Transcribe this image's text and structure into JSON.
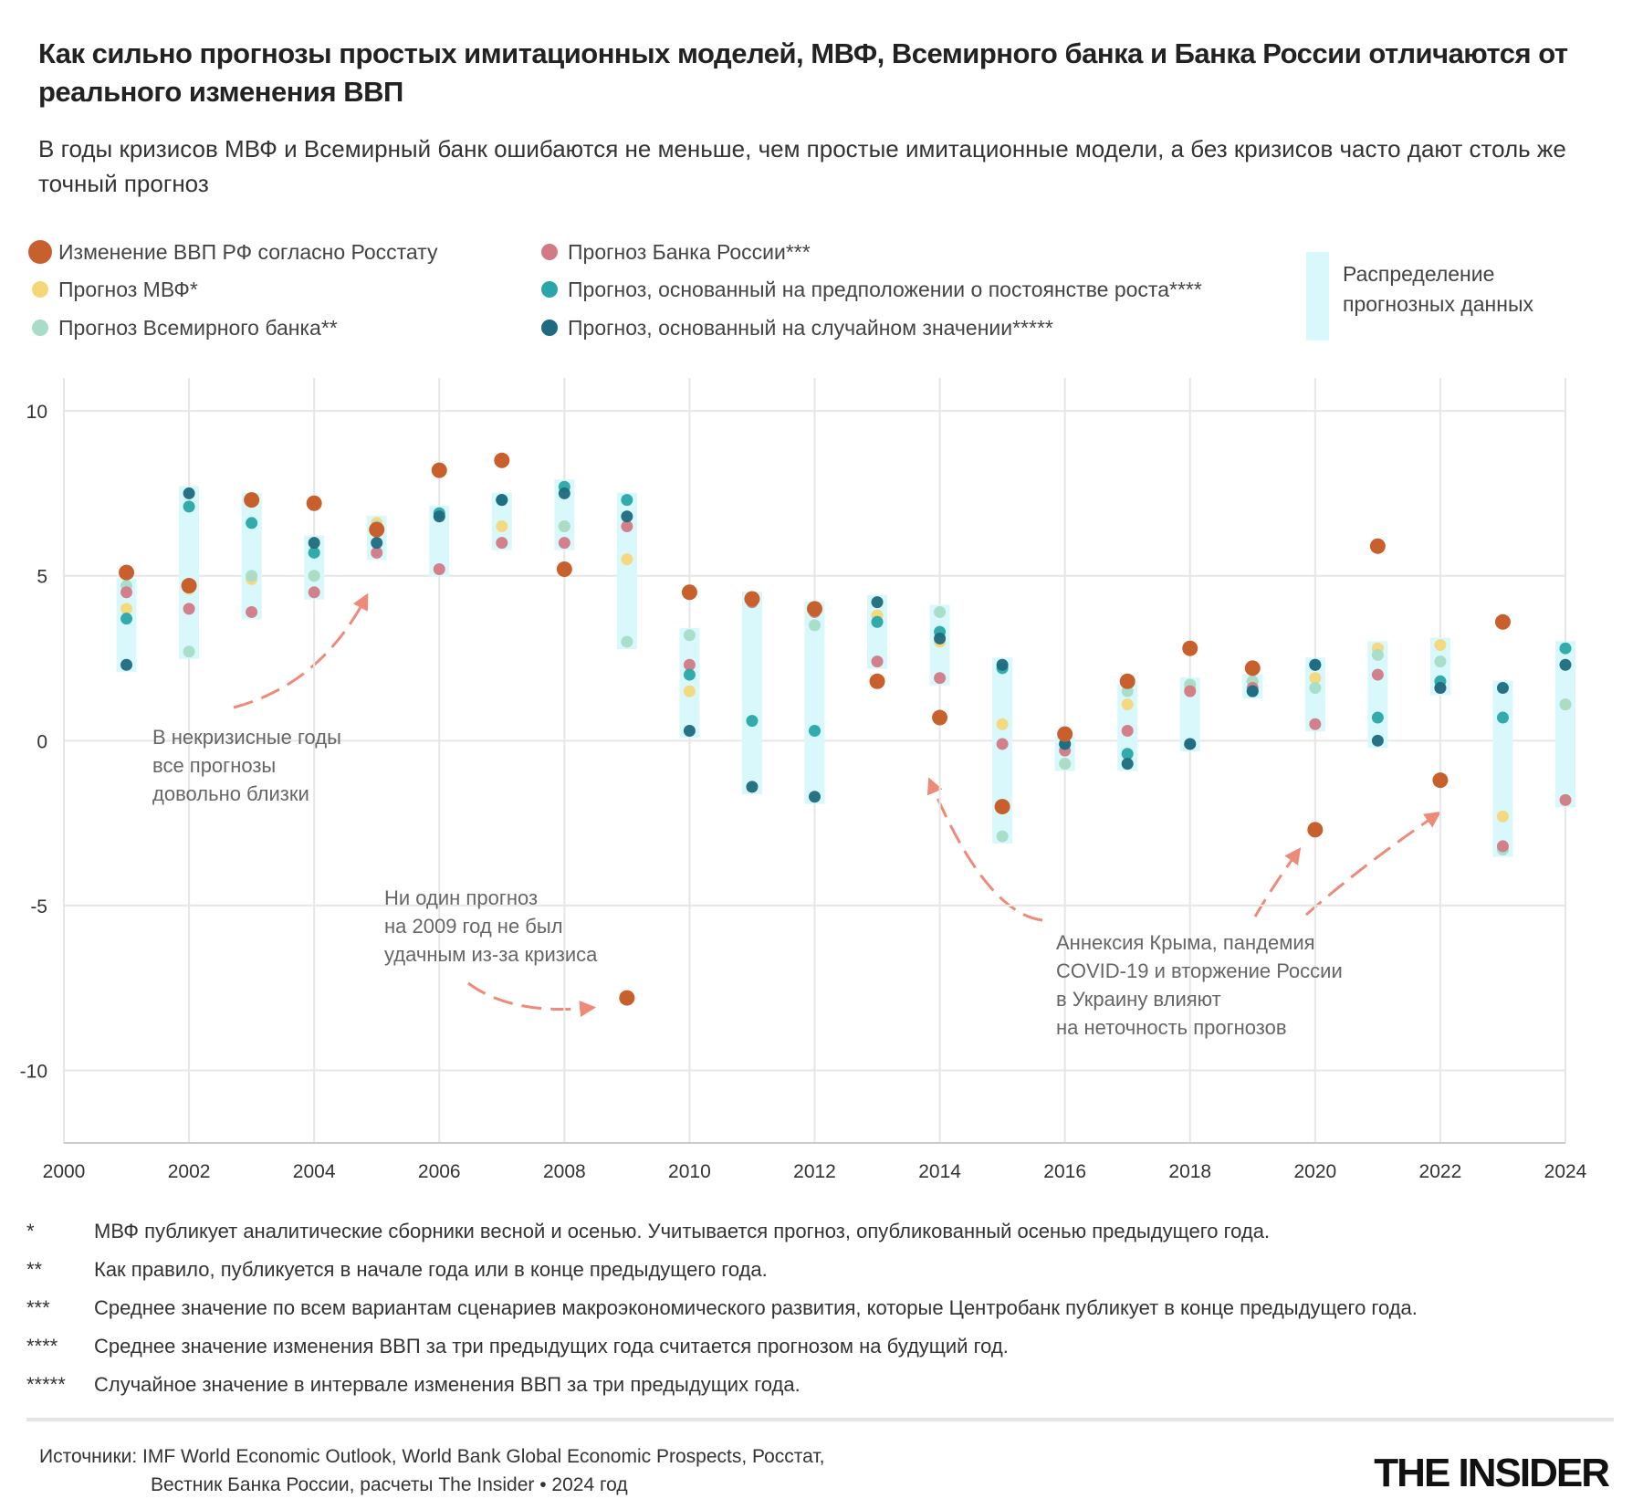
{
  "header": {
    "title": "Как сильно прогнозы простых имитационных моделей, МВФ, Всемирного банка и Банка России отличаются от реального изменения ВВП",
    "subtitle": "В годы кризисов МВФ и Всемирный банк ошибаются не меньше, чем простые имитационные модели, а без кризисов часто дают столь же точный прогноз"
  },
  "chart_data": {
    "type": "scatter",
    "band_label": [
      "Распределение",
      "прогнозных данных"
    ],
    "x": [
      2001,
      2002,
      2003,
      2004,
      2005,
      2006,
      2007,
      2008,
      2009,
      2010,
      2011,
      2012,
      2013,
      2014,
      2015,
      2016,
      2017,
      2018,
      2019,
      2020,
      2021,
      2022,
      2023,
      2024
    ],
    "series": [
      {
        "name": "Изменение ВВП РФ согласно Росстату",
        "color": "#c8602d",
        "values": [
          5.1,
          4.7,
          7.3,
          7.2,
          6.4,
          8.2,
          8.5,
          5.2,
          -7.8,
          4.5,
          4.3,
          4.0,
          1.8,
          0.7,
          -2.0,
          0.2,
          1.8,
          2.8,
          2.2,
          -2.7,
          5.9,
          -1.2,
          3.6,
          null
        ]
      },
      {
        "name": "Прогноз МВФ*",
        "color": "#f5d77a",
        "values": [
          4.0,
          4.6,
          4.9,
          5.0,
          6.6,
          6.8,
          6.5,
          6.5,
          5.5,
          1.5,
          4.3,
          4.0,
          3.8,
          3.0,
          0.5,
          -0.7,
          1.1,
          1.6,
          1.8,
          1.9,
          2.8,
          2.9,
          -2.3,
          1.1
        ]
      },
      {
        "name": "Прогноз Всемирного банка**",
        "color": "#a6dcc8",
        "values": [
          4.7,
          2.7,
          5.0,
          5.0,
          6.5,
          6.8,
          7.3,
          6.5,
          3.0,
          3.2,
          4.2,
          3.5,
          3.6,
          3.9,
          -2.9,
          -0.7,
          1.5,
          1.7,
          1.8,
          1.6,
          2.6,
          2.4,
          -3.3,
          1.1
        ]
      },
      {
        "name": "Прогноз Банка России***",
        "color": "#d27a86",
        "values": [
          4.5,
          4.0,
          3.9,
          4.5,
          5.7,
          5.2,
          6.0,
          6.0,
          6.5,
          2.3,
          4.2,
          3.9,
          2.4,
          1.9,
          -0.1,
          -0.3,
          0.3,
          1.5,
          1.6,
          0.5,
          2.0,
          1.6,
          -3.2,
          -1.8
        ]
      },
      {
        "name": "Прогноз, основанный на предположении о постоянстве роста****",
        "color": "#2aa6a8",
        "values": [
          3.7,
          7.1,
          6.6,
          5.7,
          6.4,
          6.9,
          7.3,
          7.7,
          7.3,
          2.0,
          0.6,
          0.3,
          3.6,
          3.3,
          2.2,
          -0.1,
          -0.4,
          -0.1,
          1.5,
          2.3,
          0.7,
          1.8,
          0.7,
          2.8
        ]
      },
      {
        "name": "Прогноз, основанный на случайном значении*****",
        "color": "#1f6a80",
        "values": [
          2.3,
          7.5,
          7.3,
          6.0,
          6.0,
          6.8,
          7.3,
          7.5,
          6.8,
          0.3,
          -1.4,
          -1.7,
          4.2,
          3.1,
          2.3,
          -0.1,
          -0.7,
          -0.1,
          1.5,
          2.3,
          0.0,
          1.6,
          1.6,
          2.3
        ]
      }
    ],
    "band_color": "#d8f8fb",
    "xlim": [
      2000,
      2024
    ],
    "xticks": [
      2000,
      2002,
      2004,
      2006,
      2008,
      2010,
      2012,
      2014,
      2016,
      2018,
      2020,
      2022,
      2024
    ],
    "ylim": [
      -12.2,
      11
    ],
    "yticks": [
      -10,
      -5,
      0,
      5,
      10
    ],
    "grid": true,
    "annotations": [
      [
        "В некризисные годы",
        "все прогнозы",
        "довольно близки"
      ],
      [
        "Ни один прогноз",
        "на 2009 год не был",
        "удачным из-за кризиса"
      ],
      [
        "Аннексия Крыма, пандемия",
        "COVID-19 и вторжение России",
        "в Украину влияют",
        "на неточность прогнозов"
      ]
    ]
  },
  "footnotes": [
    {
      "mark": "*",
      "text": "МВФ публикует аналитические сборники весной и осенью. Учитывается прогноз, опубликованный осенью предыдущего года."
    },
    {
      "mark": "**",
      "text": "Как правило, публикуется в начале года или в конце предыдущего года."
    },
    {
      "mark": "***",
      "text": "Среднее значение по всем вариантам сценариев макроэкономического развития, которые Центробанк публикует в конце предыдущего года."
    },
    {
      "mark": "****",
      "text": "Среднее значение изменения ВВП за три предыдущих года считается прогнозом на будущий год."
    },
    {
      "mark": "*****",
      "text": "Случайное значение в интервале изменения ВВП за три предыдущих года."
    }
  ],
  "source": [
    "Источники: IMF World Economic Outlook, World Bank Global Economic Prospects, Росстат,",
    "Вестник Банка России, расчеты The Insider • 2024 год"
  ],
  "logo": "THE INSIDER"
}
